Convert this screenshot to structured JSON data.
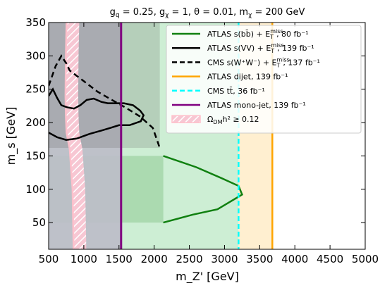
{
  "chart_data": {
    "type": "area",
    "title": "g_q = 0.25, g_χ = 1, θ = 0.01, m_χ = 200 GeV",
    "title_parts": [
      "g",
      "q",
      " = 0.25, g",
      "χ",
      " = 1, θ = 0.01, m",
      "χ",
      " = 200 GeV"
    ],
    "xlabel": "m_Z' [GeV]",
    "ylabel": "m_s [GeV]",
    "xlim": [
      500,
      5000
    ],
    "ylim": [
      10,
      350
    ],
    "xticks": [
      500,
      1000,
      1500,
      2000,
      2500,
      3000,
      3500,
      4000,
      4500,
      5000
    ],
    "yticks": [
      50,
      100,
      150,
      200,
      250,
      300,
      350
    ],
    "legend_position": "top-right",
    "colors": {
      "atlas_bb": "#108010",
      "atlas_vv": "#000000",
      "cms_ww": "#000000",
      "atlas_dijet": "#ffa500",
      "cms_tt": "#00ffff",
      "atlas_monojet": "#800080",
      "relic": "#ffc0cb"
    },
    "legend": [
      {
        "key": "atlas_bb",
        "pre": "ATLAS s(bb̄) + E",
        "sub": "T",
        "sup": "miss",
        "post": ", 80 fb⁻¹",
        "style": "solid",
        "color": "#108010"
      },
      {
        "key": "atlas_vv",
        "pre": "ATLAS s(VV) + E",
        "sub": "T",
        "sup": "miss",
        "post": ", 139 fb⁻¹",
        "style": "solid",
        "color": "#000000"
      },
      {
        "key": "cms_ww",
        "pre": "CMS s(W⁺W⁻) + E",
        "sub": "T",
        "sup": "miss",
        "post": ", 137 fb⁻¹",
        "style": "dashed",
        "color": "#000000"
      },
      {
        "key": "atlas_dijet",
        "pre": "ATLAS dijet, 139 fb⁻¹",
        "sub": "",
        "sup": "",
        "post": "",
        "style": "solid",
        "color": "#ffa500"
      },
      {
        "key": "cms_tt",
        "pre": "CMS tt̄, 36 fb⁻¹",
        "sub": "",
        "sup": "",
        "post": "",
        "style": "dashed",
        "color": "#00ffff"
      },
      {
        "key": "atlas_monojet",
        "pre": "ATLAS mono-jet, 139 fb⁻¹",
        "sub": "",
        "sup": "",
        "post": "",
        "style": "solid",
        "color": "#800080"
      },
      {
        "key": "relic",
        "pre": "Ω",
        "sub": "DM",
        "sup": "",
        "post": "h² ≥ 0.12",
        "style": "hatched",
        "color": "#ffc0cb"
      }
    ],
    "series": [
      {
        "key": "atlas_bb_contour",
        "color": "#108010",
        "points": [
          [
            2130,
            150
          ],
          [
            2600,
            133
          ],
          [
            2950,
            117
          ],
          [
            3200,
            105
          ],
          [
            3250,
            92
          ],
          [
            2900,
            70
          ],
          [
            2550,
            62
          ],
          [
            2130,
            50
          ]
        ]
      },
      {
        "key": "atlas_vv_contour",
        "color": "#000000",
        "points": [
          [
            500,
            240
          ],
          [
            560,
            250
          ],
          [
            620,
            237
          ],
          [
            680,
            226
          ],
          [
            760,
            223
          ],
          [
            860,
            221
          ],
          [
            950,
            226
          ],
          [
            1040,
            234
          ],
          [
            1140,
            236
          ],
          [
            1250,
            231
          ],
          [
            1340,
            229
          ],
          [
            1450,
            229
          ],
          [
            1570,
            229
          ],
          [
            1700,
            226
          ],
          [
            1800,
            218
          ],
          [
            1850,
            211
          ],
          [
            1810,
            202
          ],
          [
            1650,
            196
          ],
          [
            1500,
            196
          ],
          [
            1380,
            192
          ],
          [
            1250,
            188
          ],
          [
            1080,
            183
          ],
          [
            900,
            176
          ],
          [
            750,
            174
          ],
          [
            620,
            178
          ],
          [
            500,
            185
          ]
        ]
      },
      {
        "key": "cms_ww_contour",
        "color": "#000000",
        "points": [
          [
            500,
            255
          ],
          [
            600,
            285
          ],
          [
            680,
            300
          ],
          [
            750,
            289
          ],
          [
            800,
            278
          ],
          [
            1000,
            262
          ],
          [
            1200,
            246
          ],
          [
            1400,
            234
          ],
          [
            1600,
            222
          ],
          [
            1800,
            209
          ],
          [
            1980,
            192
          ],
          [
            2080,
            162
          ]
        ]
      },
      {
        "key": "cms_tt_line",
        "color": "#00ffff",
        "x": 3200
      },
      {
        "key": "atlas_dijet_line",
        "color": "#ffa500",
        "x": 3680
      },
      {
        "key": "atlas_monojet_line",
        "color": "#800080",
        "x": 1530
      },
      {
        "key": "relic_boundary",
        "color": "#ffc0cb",
        "points": [
          [
            755,
            350
          ],
          [
            745,
            300
          ],
          [
            740,
            240
          ],
          [
            745,
            210
          ],
          [
            755,
            185
          ],
          [
            800,
            160
          ],
          [
            840,
            100
          ],
          [
            855,
            10
          ]
        ]
      },
      {
        "key": "monojet_excluded_region",
        "color": "#b8bcc4",
        "x": [
          500,
          1530
        ],
        "y": [
          10,
          350
        ]
      },
      {
        "key": "cms_tt_excluded_region",
        "color": "#cdeed4",
        "x": [
          1530,
          3200
        ],
        "y": [
          10,
          350
        ]
      },
      {
        "key": "dijet_excluded_region",
        "color": "#ffefd0",
        "x": [
          3200,
          3680
        ],
        "y": [
          10,
          350
        ]
      },
      {
        "key": "atlas_bb_excluded_band",
        "color": "#108010",
        "x": [
          500,
          2130
        ],
        "y": [
          50,
          150
        ]
      },
      {
        "key": "atlas_vv_excluded_band",
        "color": "#555555",
        "x": [
          500,
          2080
        ],
        "y": [
          162,
          350
        ]
      }
    ]
  }
}
